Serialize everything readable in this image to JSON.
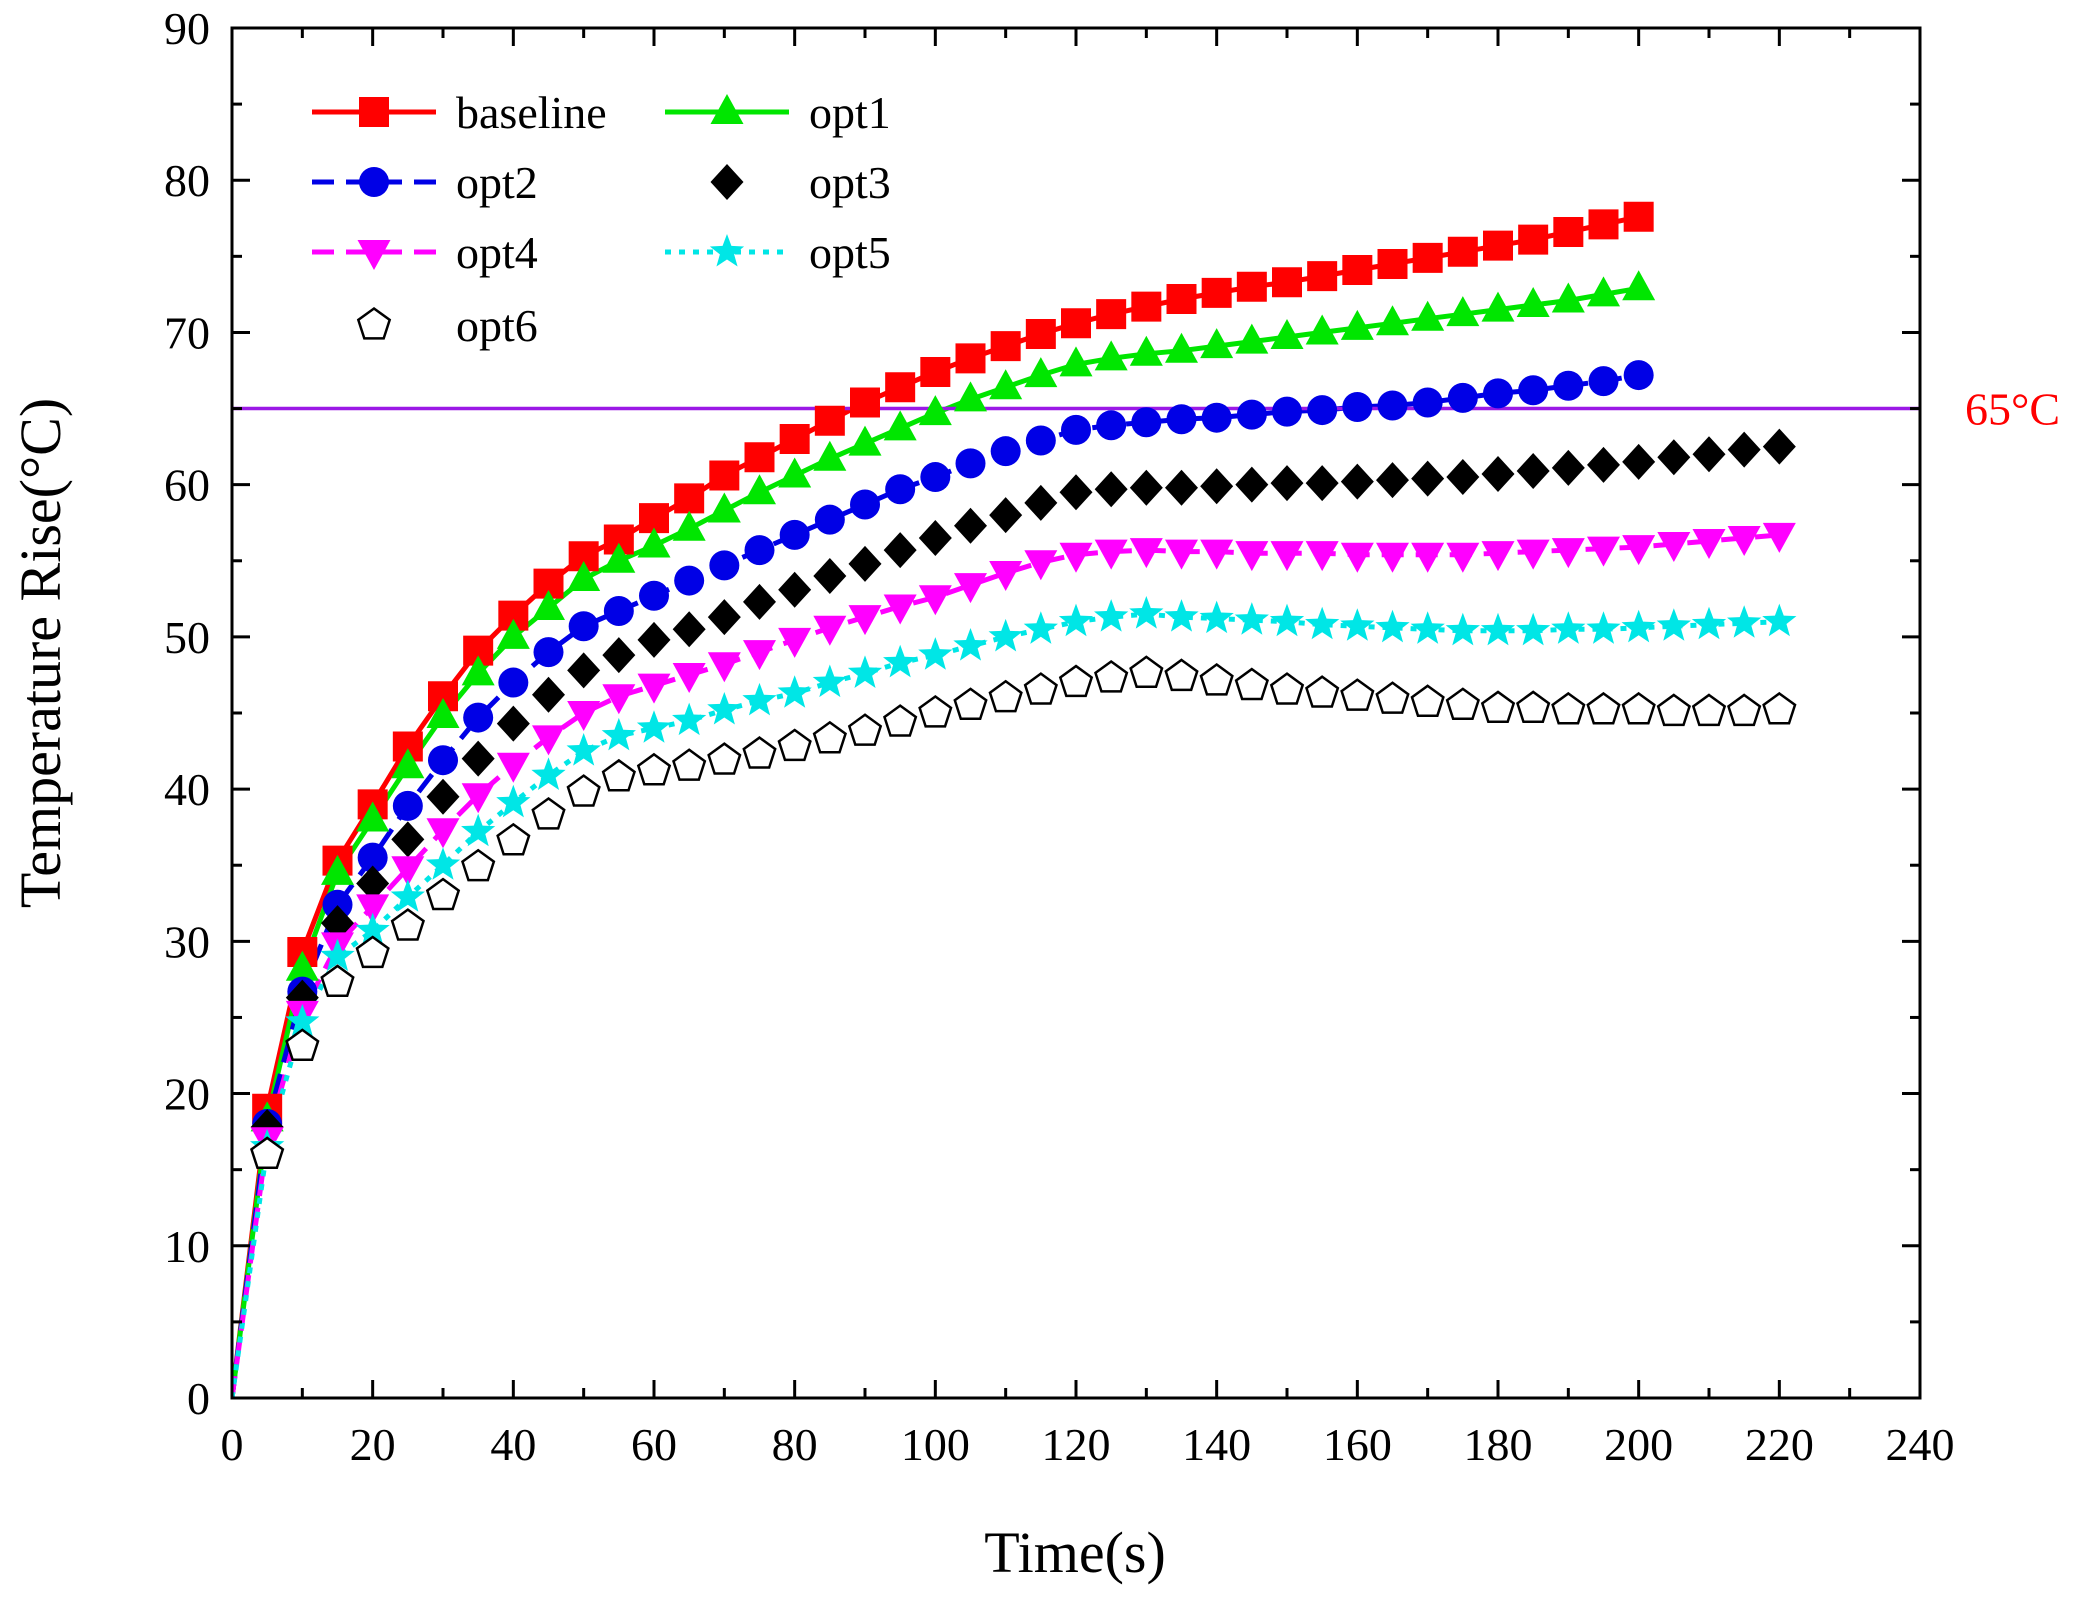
{
  "chart_data": {
    "type": "line",
    "title": "",
    "xlabel": "Time(s)",
    "ylabel": "Temperature Rise(°C)",
    "xlim": [
      0,
      240
    ],
    "ylim": [
      0,
      90
    ],
    "xticks": [
      "0",
      "20",
      "40",
      "60",
      "80",
      "100",
      "120",
      "140",
      "160",
      "180",
      "200",
      "220",
      "240"
    ],
    "yticks": [
      "0",
      "10",
      "20",
      "30",
      "40",
      "50",
      "60",
      "70",
      "80",
      "90"
    ],
    "grid": false,
    "legend_position": "top-left",
    "reference_line": {
      "y": 65,
      "label": "65°C",
      "color": "#9b19e6",
      "label_color": "#ff0000"
    },
    "series": [
      {
        "name": "baseline",
        "color": "#ff0000",
        "marker": "square",
        "line": "solid",
        "x": [
          0,
          5,
          10,
          15,
          20,
          25,
          30,
          35,
          40,
          45,
          50,
          55,
          60,
          65,
          70,
          75,
          80,
          85,
          90,
          95,
          100,
          105,
          110,
          115,
          120,
          125,
          130,
          135,
          140,
          145,
          150,
          155,
          160,
          165,
          170,
          175,
          180,
          185,
          190,
          195,
          200
        ],
        "y": [
          0,
          19,
          29.3,
          35.3,
          39,
          42.8,
          46.1,
          49.1,
          51.4,
          53.5,
          55.3,
          56.4,
          57.8,
          59.1,
          60.6,
          61.8,
          63,
          64.2,
          65.4,
          66.4,
          67.4,
          68.3,
          69.1,
          69.9,
          70.6,
          71.2,
          71.7,
          72.2,
          72.6,
          73,
          73.3,
          73.7,
          74.1,
          74.5,
          74.9,
          75.3,
          75.7,
          76.1,
          76.6,
          77.1,
          77.6
        ]
      },
      {
        "name": "opt1",
        "color": "#00e600",
        "marker": "triangle-up",
        "line": "solid",
        "x": [
          0,
          5,
          10,
          15,
          20,
          25,
          30,
          35,
          40,
          45,
          50,
          55,
          60,
          65,
          70,
          75,
          80,
          85,
          90,
          95,
          100,
          105,
          110,
          115,
          120,
          125,
          130,
          135,
          140,
          145,
          150,
          155,
          160,
          165,
          170,
          175,
          180,
          185,
          190,
          195,
          200
        ],
        "y": [
          0,
          18.3,
          28.2,
          34.5,
          38,
          41.5,
          44.8,
          47.6,
          50,
          51.9,
          53.8,
          55,
          56,
          57.1,
          58.3,
          59.5,
          60.6,
          61.7,
          62.7,
          63.7,
          64.7,
          65.6,
          66.4,
          67.2,
          67.9,
          68.3,
          68.6,
          68.8,
          69.1,
          69.4,
          69.7,
          70,
          70.3,
          70.6,
          70.9,
          71.2,
          71.5,
          71.8,
          72.1,
          72.5,
          72.9
        ]
      },
      {
        "name": "opt2",
        "color": "#0000e6",
        "marker": "circle",
        "line": "dashed",
        "x": [
          0,
          5,
          10,
          15,
          20,
          25,
          30,
          35,
          40,
          45,
          50,
          55,
          60,
          65,
          70,
          75,
          80,
          85,
          90,
          95,
          100,
          105,
          110,
          115,
          120,
          125,
          130,
          135,
          140,
          145,
          150,
          155,
          160,
          165,
          170,
          175,
          180,
          185,
          190,
          195,
          200
        ],
        "y": [
          0,
          18,
          26.7,
          32.4,
          35.5,
          38.9,
          41.9,
          44.7,
          47,
          49,
          50.7,
          51.7,
          52.7,
          53.7,
          54.7,
          55.7,
          56.7,
          57.7,
          58.7,
          59.7,
          60.5,
          61.4,
          62.2,
          62.9,
          63.6,
          63.9,
          64.1,
          64.3,
          64.4,
          64.6,
          64.8,
          64.9,
          65.1,
          65.2,
          65.4,
          65.7,
          66,
          66.2,
          66.5,
          66.8,
          67.2
        ]
      },
      {
        "name": "opt3",
        "color": "#000000",
        "marker": "diamond",
        "line": "none",
        "x": [
          0,
          5,
          10,
          15,
          20,
          25,
          30,
          35,
          40,
          45,
          50,
          55,
          60,
          65,
          70,
          75,
          80,
          85,
          90,
          95,
          100,
          105,
          110,
          115,
          120,
          125,
          130,
          135,
          140,
          145,
          150,
          155,
          160,
          165,
          170,
          175,
          180,
          185,
          190,
          195,
          200,
          205,
          210,
          215,
          220
        ],
        "y": [
          0,
          17.8,
          26.3,
          31.2,
          33.8,
          36.7,
          39.5,
          42,
          44.3,
          46.2,
          47.8,
          48.8,
          49.8,
          50.5,
          51.3,
          52.3,
          53.1,
          54,
          54.8,
          55.7,
          56.5,
          57.3,
          58,
          58.8,
          59.5,
          59.7,
          59.8,
          59.8,
          59.9,
          60,
          60.1,
          60.1,
          60.2,
          60.3,
          60.4,
          60.5,
          60.7,
          60.9,
          61.1,
          61.3,
          61.5,
          61.8,
          62,
          62.3,
          62.5
        ]
      },
      {
        "name": "opt4",
        "color": "#ff00ff",
        "marker": "triangle-down",
        "line": "dashed",
        "x": [
          0,
          5,
          10,
          15,
          20,
          25,
          30,
          35,
          40,
          45,
          50,
          55,
          60,
          65,
          70,
          75,
          80,
          85,
          90,
          95,
          100,
          105,
          110,
          115,
          120,
          125,
          130,
          135,
          140,
          145,
          150,
          155,
          160,
          165,
          170,
          175,
          180,
          185,
          190,
          195,
          200,
          205,
          210,
          215,
          220
        ],
        "y": [
          0,
          17,
          25.3,
          29.8,
          32.3,
          34.8,
          37.3,
          39.6,
          41.6,
          43.4,
          45,
          46.1,
          46.8,
          47.5,
          48.2,
          49,
          49.8,
          50.6,
          51.3,
          52,
          52.6,
          53.4,
          54.2,
          54.9,
          55.4,
          55.6,
          55.7,
          55.6,
          55.6,
          55.5,
          55.5,
          55.5,
          55.4,
          55.4,
          55.4,
          55.4,
          55.5,
          55.6,
          55.7,
          55.8,
          55.9,
          56.1,
          56.3,
          56.5,
          56.7
        ]
      },
      {
        "name": "opt5",
        "color": "#00e6e6",
        "marker": "star",
        "line": "dotted",
        "x": [
          0,
          5,
          10,
          15,
          20,
          25,
          30,
          35,
          40,
          45,
          50,
          55,
          60,
          65,
          70,
          75,
          80,
          85,
          90,
          95,
          100,
          105,
          110,
          115,
          120,
          125,
          130,
          135,
          140,
          145,
          150,
          155,
          160,
          165,
          170,
          175,
          180,
          185,
          190,
          195,
          200,
          205,
          210,
          215,
          220
        ],
        "y": [
          0,
          16.5,
          24.7,
          29,
          30.7,
          32.9,
          35,
          37.2,
          39.1,
          40.9,
          42.5,
          43.5,
          44,
          44.5,
          45.2,
          45.8,
          46.3,
          47,
          47.6,
          48.3,
          48.8,
          49.4,
          50,
          50.5,
          51,
          51.3,
          51.5,
          51.3,
          51.2,
          51.1,
          51,
          50.8,
          50.7,
          50.6,
          50.5,
          50.4,
          50.4,
          50.4,
          50.5,
          50.5,
          50.6,
          50.7,
          50.8,
          50.9,
          51
        ]
      },
      {
        "name": "opt6",
        "color": "#000000",
        "marker": "pentagon-open",
        "line": "none",
        "x": [
          0,
          5,
          10,
          15,
          20,
          25,
          30,
          35,
          40,
          45,
          50,
          55,
          60,
          65,
          70,
          75,
          80,
          85,
          90,
          95,
          100,
          105,
          110,
          115,
          120,
          125,
          130,
          135,
          140,
          145,
          150,
          155,
          160,
          165,
          170,
          175,
          180,
          185,
          190,
          195,
          200,
          205,
          210,
          215,
          220
        ],
        "y": [
          0,
          16,
          23.1,
          27.3,
          29.2,
          31,
          33,
          34.9,
          36.6,
          38.3,
          39.8,
          40.8,
          41.2,
          41.5,
          41.9,
          42.3,
          42.8,
          43.3,
          43.8,
          44.4,
          45,
          45.5,
          46,
          46.5,
          47,
          47.3,
          47.6,
          47.4,
          47.1,
          46.8,
          46.5,
          46.3,
          46.1,
          45.9,
          45.7,
          45.5,
          45.3,
          45.3,
          45.2,
          45.2,
          45.2,
          45.1,
          45.1,
          45.1,
          45.2
        ]
      }
    ]
  }
}
